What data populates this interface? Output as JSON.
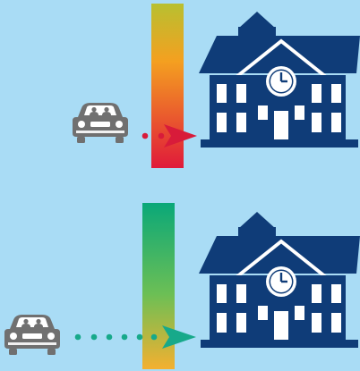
{
  "colors": {
    "background": "#a9dcf5",
    "building": "#0f3c78",
    "car": "#707070",
    "red_arrow": "#d81b3a",
    "green_arrow": "#17a98a",
    "bar_top": {
      "start": "#b8c030",
      "mid": "#f4a020",
      "end": "#e01a3a"
    },
    "bar_bottom": {
      "start": "#0aa878",
      "mid": "#6cbf55",
      "end": "#f4b030"
    }
  },
  "panels": [
    {
      "name": "top-panel",
      "arrow": "red",
      "dots": 2,
      "outcome": "blocked"
    },
    {
      "name": "bottom-panel",
      "arrow": "green",
      "dots": 6,
      "outcome": "passes"
    }
  ],
  "icons": [
    "car-icon",
    "school-building-icon",
    "clock-icon",
    "arrow-icon"
  ]
}
